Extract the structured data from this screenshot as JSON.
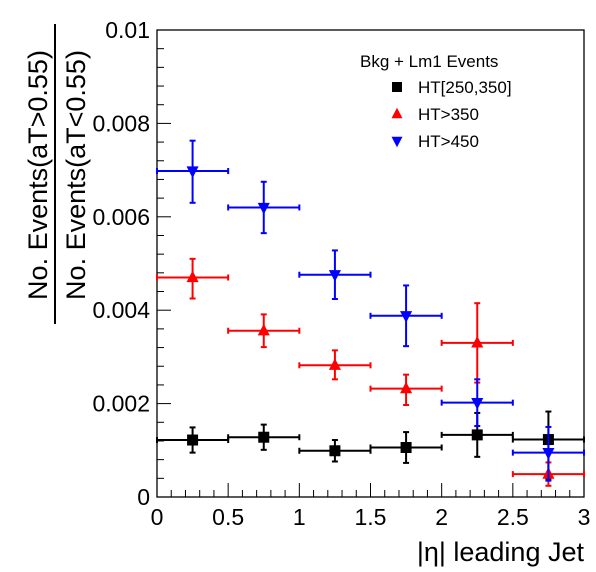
{
  "chart_data": {
    "type": "scatter",
    "xlabel": "|η| leading Jet",
    "ylabel_numerator": "No. Events(aT>0.55)",
    "ylabel_denominator": "No. Events(aT<0.55)",
    "xlim": [
      0,
      3
    ],
    "ylim": [
      0,
      0.01
    ],
    "x_ticks": [
      {
        "value": 0,
        "label": "0"
      },
      {
        "value": 0.5,
        "label": "0.5"
      },
      {
        "value": 1,
        "label": "1"
      },
      {
        "value": 1.5,
        "label": "1.5"
      },
      {
        "value": 2,
        "label": "2"
      },
      {
        "value": 2.5,
        "label": "2.5"
      },
      {
        "value": 3,
        "label": "3"
      }
    ],
    "y_ticks": [
      {
        "value": 0,
        "label": "0"
      },
      {
        "value": 0.002,
        "label": "0.002"
      },
      {
        "value": 0.004,
        "label": "0.004"
      },
      {
        "value": 0.006,
        "label": "0.006"
      },
      {
        "value": 0.008,
        "label": "0.008"
      },
      {
        "value": 0.01,
        "label": "0.01"
      }
    ],
    "grid": false,
    "legend": {
      "title": "Bkg + Lm1 Events",
      "position": "top-right"
    },
    "series": [
      {
        "name": "HT[250,350]",
        "marker": "square",
        "color": "#000000",
        "x": [
          0.25,
          0.75,
          1.25,
          1.75,
          2.25,
          2.75
        ],
        "xerr": [
          0.25,
          0.25,
          0.25,
          0.25,
          0.25,
          0.25
        ],
        "y": [
          0.00122,
          0.00128,
          0.00099,
          0.00106,
          0.00133,
          0.00123
        ],
        "yerr_low": [
          0.00027,
          0.00027,
          0.00023,
          0.00033,
          0.00047,
          0.00085
        ],
        "yerr_high": [
          0.00027,
          0.00027,
          0.00023,
          0.00033,
          0.00047,
          0.0006
        ]
      },
      {
        "name": "HT>350",
        "marker": "triangle-up",
        "color": "#ff0000",
        "x": [
          0.25,
          0.75,
          1.25,
          1.75,
          2.25,
          2.75
        ],
        "xerr": [
          0.25,
          0.25,
          0.25,
          0.25,
          0.25,
          0.25
        ],
        "y": [
          0.0047,
          0.00356,
          0.00282,
          0.00232,
          0.0033,
          0.00049
        ],
        "yerr_low": [
          0.00045,
          0.00035,
          0.0003,
          0.00035,
          0.00085,
          0.00025
        ],
        "yerr_high": [
          0.0004,
          0.00035,
          0.00032,
          0.0003,
          0.00085,
          0.00025
        ]
      },
      {
        "name": "HT>450",
        "marker": "triangle-down",
        "color": "#0000ff",
        "x": [
          0.25,
          0.75,
          1.25,
          1.75,
          2.25,
          2.75
        ],
        "xerr": [
          0.25,
          0.25,
          0.25,
          0.25,
          0.25,
          0.25
        ],
        "y": [
          0.00698,
          0.0062,
          0.00476,
          0.00388,
          0.00202,
          0.00095
        ],
        "yerr_low": [
          0.00068,
          0.00055,
          0.00052,
          0.00065,
          0.0005,
          0.0006
        ],
        "yerr_high": [
          0.00065,
          0.00055,
          0.00052,
          0.00065,
          0.0005,
          0.00055
        ]
      }
    ]
  }
}
